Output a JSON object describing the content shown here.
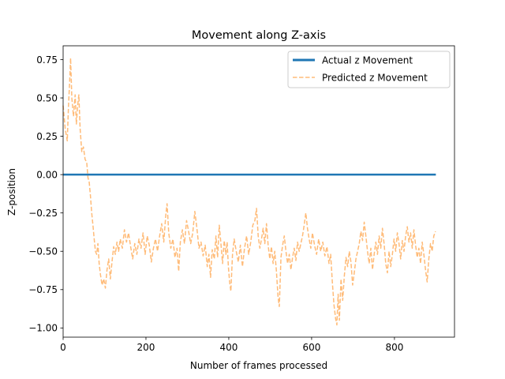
{
  "chart_data": {
    "type": "line",
    "title": "Movement along Z-axis",
    "xlabel": "Number of frames processed",
    "ylabel": "Z-position",
    "xlim": [
      0,
      945
    ],
    "ylim": [
      -1.06,
      0.84
    ],
    "xticks": [
      0,
      200,
      400,
      600,
      800
    ],
    "yticks": [
      -1.0,
      -0.75,
      -0.5,
      -0.25,
      0.0,
      0.25,
      0.5,
      0.75
    ],
    "ytick_labels": [
      "−1.00",
      "−0.75",
      "−0.50",
      "−0.25",
      "0.00",
      "0.25",
      "0.50",
      "0.75"
    ],
    "xtick_labels": [
      "0",
      "200",
      "400",
      "600",
      "800"
    ],
    "grid": false,
    "legend_position": "top-right",
    "series": [
      {
        "name": "Actual z Movement",
        "color": "#1f77b4",
        "style": "solid",
        "points": [
          [
            0,
            0.0
          ],
          [
            900,
            0.0
          ]
        ]
      },
      {
        "name": "Predicted z Movement",
        "color": "#ffbb78",
        "style": "dashed",
        "points": [
          [
            0,
            0.45
          ],
          [
            5,
            0.3
          ],
          [
            10,
            0.22
          ],
          [
            13,
            0.45
          ],
          [
            16,
            0.62
          ],
          [
            18,
            0.76
          ],
          [
            21,
            0.5
          ],
          [
            25,
            0.38
          ],
          [
            29,
            0.52
          ],
          [
            32,
            0.33
          ],
          [
            35,
            0.45
          ],
          [
            38,
            0.52
          ],
          [
            41,
            0.3
          ],
          [
            45,
            0.15
          ],
          [
            49,
            0.18
          ],
          [
            53,
            0.1
          ],
          [
            57,
            0.08
          ],
          [
            60,
            -0.02
          ],
          [
            63,
            -0.05
          ],
          [
            66,
            -0.14
          ],
          [
            69,
            -0.25
          ],
          [
            72,
            -0.33
          ],
          [
            75,
            -0.42
          ],
          [
            78,
            -0.5
          ],
          [
            81,
            -0.52
          ],
          [
            84,
            -0.45
          ],
          [
            87,
            -0.58
          ],
          [
            90,
            -0.65
          ],
          [
            94,
            -0.72
          ],
          [
            98,
            -0.68
          ],
          [
            102,
            -0.74
          ],
          [
            106,
            -0.62
          ],
          [
            110,
            -0.55
          ],
          [
            114,
            -0.68
          ],
          [
            118,
            -0.57
          ],
          [
            122,
            -0.47
          ],
          [
            126,
            -0.52
          ],
          [
            130,
            -0.44
          ],
          [
            134,
            -0.5
          ],
          [
            138,
            -0.42
          ],
          [
            143,
            -0.48
          ],
          [
            148,
            -0.36
          ],
          [
            153,
            -0.44
          ],
          [
            158,
            -0.38
          ],
          [
            163,
            -0.47
          ],
          [
            168,
            -0.55
          ],
          [
            173,
            -0.45
          ],
          [
            178,
            -0.52
          ],
          [
            183,
            -0.42
          ],
          [
            188,
            -0.48
          ],
          [
            193,
            -0.38
          ],
          [
            198,
            -0.52
          ],
          [
            203,
            -0.4
          ],
          [
            208,
            -0.46
          ],
          [
            213,
            -0.57
          ],
          [
            218,
            -0.48
          ],
          [
            223,
            -0.42
          ],
          [
            228,
            -0.5
          ],
          [
            233,
            -0.4
          ],
          [
            238,
            -0.32
          ],
          [
            243,
            -0.44
          ],
          [
            248,
            -0.26
          ],
          [
            251,
            -0.19
          ],
          [
            255,
            -0.38
          ],
          [
            260,
            -0.48
          ],
          [
            265,
            -0.42
          ],
          [
            270,
            -0.54
          ],
          [
            275,
            -0.48
          ],
          [
            279,
            -0.63
          ],
          [
            283,
            -0.44
          ],
          [
            288,
            -0.36
          ],
          [
            293,
            -0.45
          ],
          [
            298,
            -0.3
          ],
          [
            303,
            -0.37
          ],
          [
            308,
            -0.45
          ],
          [
            313,
            -0.38
          ],
          [
            318,
            -0.24
          ],
          [
            323,
            -0.35
          ],
          [
            328,
            -0.48
          ],
          [
            333,
            -0.44
          ],
          [
            338,
            -0.53
          ],
          [
            343,
            -0.46
          ],
          [
            348,
            -0.6
          ],
          [
            352,
            -0.52
          ],
          [
            356,
            -0.67
          ],
          [
            360,
            -0.49
          ],
          [
            365,
            -0.55
          ],
          [
            369,
            -0.4
          ],
          [
            373,
            -0.54
          ],
          [
            377,
            -0.33
          ],
          [
            381,
            -0.45
          ],
          [
            385,
            -0.58
          ],
          [
            389,
            -0.43
          ],
          [
            393,
            -0.52
          ],
          [
            396,
            -0.44
          ],
          [
            399,
            -0.6
          ],
          [
            402,
            -0.7
          ],
          [
            405,
            -0.76
          ],
          [
            409,
            -0.52
          ],
          [
            413,
            -0.42
          ],
          [
            418,
            -0.5
          ],
          [
            423,
            -0.57
          ],
          [
            428,
            -0.46
          ],
          [
            433,
            -0.6
          ],
          [
            438,
            -0.48
          ],
          [
            443,
            -0.4
          ],
          [
            448,
            -0.52
          ],
          [
            453,
            -0.44
          ],
          [
            458,
            -0.33
          ],
          [
            463,
            -0.3
          ],
          [
            467,
            -0.22
          ],
          [
            471,
            -0.4
          ],
          [
            475,
            -0.48
          ],
          [
            479,
            -0.42
          ],
          [
            483,
            -0.35
          ],
          [
            487,
            -0.45
          ],
          [
            491,
            -0.32
          ],
          [
            495,
            -0.46
          ],
          [
            499,
            -0.55
          ],
          [
            503,
            -0.47
          ],
          [
            507,
            -0.58
          ],
          [
            511,
            -0.5
          ],
          [
            515,
            -0.63
          ],
          [
            519,
            -0.8
          ],
          [
            522,
            -0.86
          ],
          [
            526,
            -0.54
          ],
          [
            530,
            -0.46
          ],
          [
            534,
            -0.4
          ],
          [
            538,
            -0.5
          ],
          [
            542,
            -0.58
          ],
          [
            546,
            -0.52
          ],
          [
            550,
            -0.62
          ],
          [
            554,
            -0.54
          ],
          [
            558,
            -0.48
          ],
          [
            562,
            -0.56
          ],
          [
            566,
            -0.44
          ],
          [
            570,
            -0.5
          ],
          [
            574,
            -0.45
          ],
          [
            578,
            -0.4
          ],
          [
            582,
            -0.33
          ],
          [
            586,
            -0.25
          ],
          [
            590,
            -0.35
          ],
          [
            594,
            -0.42
          ],
          [
            598,
            -0.48
          ],
          [
            602,
            -0.38
          ],
          [
            607,
            -0.46
          ],
          [
            612,
            -0.52
          ],
          [
            617,
            -0.42
          ],
          [
            622,
            -0.5
          ],
          [
            627,
            -0.44
          ],
          [
            632,
            -0.53
          ],
          [
            637,
            -0.47
          ],
          [
            642,
            -0.58
          ],
          [
            646,
            -0.52
          ],
          [
            650,
            -0.7
          ],
          [
            654,
            -0.85
          ],
          [
            658,
            -0.94
          ],
          [
            661,
            -0.98
          ],
          [
            664,
            -0.78
          ],
          [
            667,
            -0.95
          ],
          [
            671,
            -0.68
          ],
          [
            675,
            -0.82
          ],
          [
            679,
            -0.66
          ],
          [
            683,
            -0.54
          ],
          [
            687,
            -0.6
          ],
          [
            691,
            -0.5
          ],
          [
            695,
            -0.57
          ],
          [
            699,
            -0.72
          ],
          [
            703,
            -0.64
          ],
          [
            707,
            -0.55
          ],
          [
            711,
            -0.5
          ],
          [
            715,
            -0.45
          ],
          [
            719,
            -0.37
          ],
          [
            723,
            -0.43
          ],
          [
            727,
            -0.31
          ],
          [
            731,
            -0.4
          ],
          [
            735,
            -0.5
          ],
          [
            739,
            -0.58
          ],
          [
            743,
            -0.48
          ],
          [
            747,
            -0.62
          ],
          [
            751,
            -0.52
          ],
          [
            755,
            -0.44
          ],
          [
            759,
            -0.52
          ],
          [
            763,
            -0.4
          ],
          [
            767,
            -0.48
          ],
          [
            771,
            -0.35
          ],
          [
            775,
            -0.45
          ],
          [
            779,
            -0.58
          ],
          [
            783,
            -0.64
          ],
          [
            787,
            -0.5
          ],
          [
            791,
            -0.6
          ],
          [
            795,
            -0.52
          ],
          [
            799,
            -0.42
          ],
          [
            803,
            -0.5
          ],
          [
            807,
            -0.38
          ],
          [
            811,
            -0.45
          ],
          [
            815,
            -0.55
          ],
          [
            819,
            -0.43
          ],
          [
            823,
            -0.5
          ],
          [
            827,
            -0.4
          ],
          [
            831,
            -0.34
          ],
          [
            835,
            -0.44
          ],
          [
            839,
            -0.38
          ],
          [
            843,
            -0.48
          ],
          [
            847,
            -0.36
          ],
          [
            851,
            -0.46
          ],
          [
            855,
            -0.54
          ],
          [
            859,
            -0.48
          ],
          [
            863,
            -0.58
          ],
          [
            867,
            -0.44
          ],
          [
            871,
            -0.52
          ],
          [
            875,
            -0.62
          ],
          [
            879,
            -0.7
          ],
          [
            883,
            -0.55
          ],
          [
            887,
            -0.45
          ],
          [
            891,
            -0.5
          ],
          [
            895,
            -0.4
          ],
          [
            899,
            -0.37
          ]
        ]
      }
    ]
  }
}
